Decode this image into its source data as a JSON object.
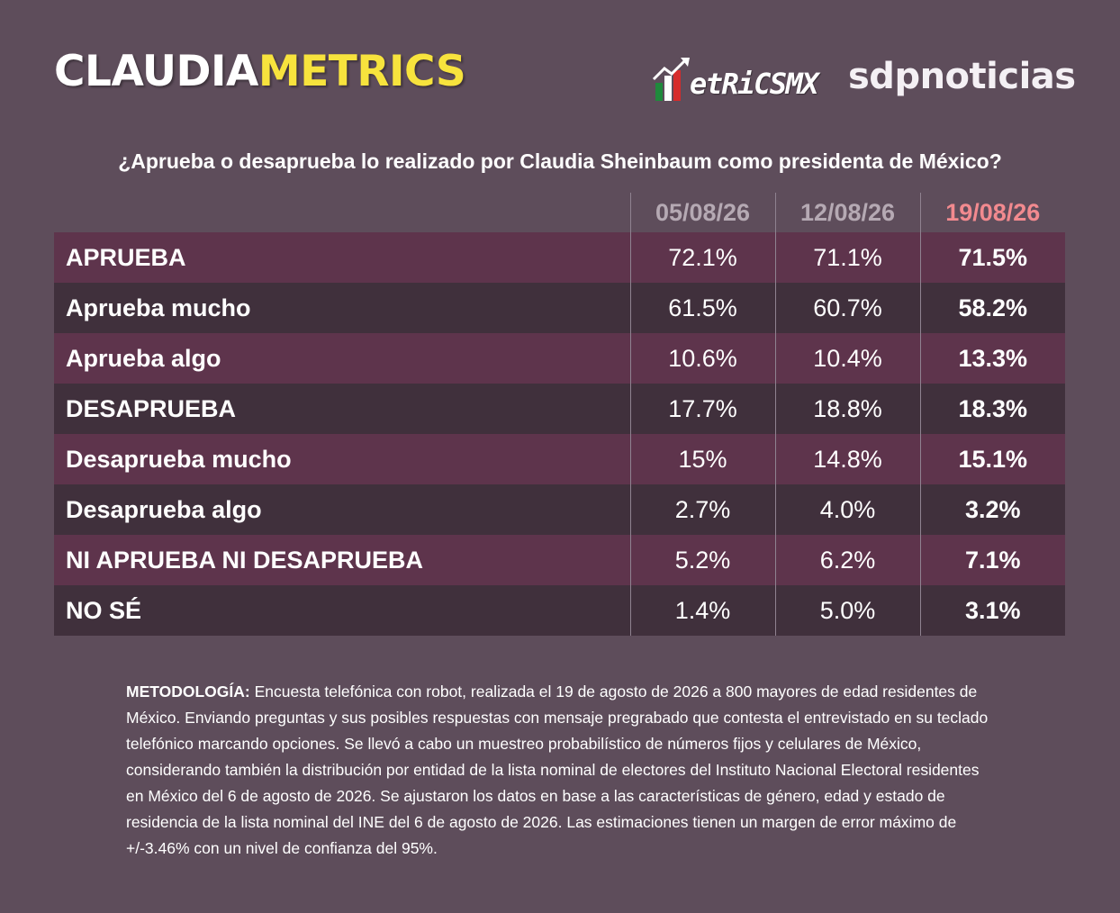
{
  "header": {
    "brand_left_white": "CLAUDIA",
    "brand_left_yellow": "METRICS",
    "brand_mid": "etRiCSMX",
    "brand_right": "sdpnoticias"
  },
  "chart_data": {
    "type": "table",
    "title": "¿Aprueba o desaprueba lo realizado por Claudia Sheinbaum como presidenta de México?",
    "columns": [
      "05/08/26",
      "12/08/26",
      "19/08/26"
    ],
    "rows": [
      {
        "label": "APRUEBA",
        "values": [
          "72.1%",
          "71.1%",
          "71.5%"
        ]
      },
      {
        "label": "Aprueba mucho",
        "values": [
          "61.5%",
          "60.7%",
          "58.2%"
        ]
      },
      {
        "label": "Aprueba algo",
        "values": [
          "10.6%",
          "10.4%",
          "13.3%"
        ]
      },
      {
        "label": "DESAPRUEBA",
        "values": [
          "17.7%",
          "18.8%",
          "18.3%"
        ]
      },
      {
        "label": "Desaprueba mucho",
        "values": [
          "15%",
          "14.8%",
          "15.1%"
        ]
      },
      {
        "label": "Desaprueba algo",
        "values": [
          "2.7%",
          "4.0%",
          "3.2%"
        ]
      },
      {
        "label": "NI APRUEBA NI DESAPRUEBA",
        "values": [
          "5.2%",
          "6.2%",
          "7.1%"
        ]
      },
      {
        "label": "NO SÉ",
        "values": [
          "1.4%",
          "5.0%",
          "3.1%"
        ]
      }
    ]
  },
  "methodology": {
    "label": "METODOLOGÍA:",
    "text": " Encuesta telefónica con robot, realizada el 19 de agosto de 2026 a 800 mayores de edad residentes de México. Enviando preguntas y sus posibles respuestas con mensaje pregrabado que contesta el entrevistado en su teclado telefónico marcando opciones. Se llevó a cabo un muestreo probabilístico de números fijos y celulares de México, considerando también la distribución por entidad de la lista nominal de electores del Instituto Nacional Electoral residentes en México del 6 de agosto de 2026. Se ajustaron los datos en base a las características de género, edad y estado de residencia de la lista nominal del INE del 6 de agosto de 2026. Las estimaciones tienen un margen de error máximo de +/-3.46% con un nivel de confianza del 95%."
  },
  "colors": {
    "background": "#5e4d5b",
    "row_odd": "#5e344c",
    "row_even": "#40303c",
    "brand_yellow": "#f7e33d",
    "latest_date": "#f28a8f",
    "old_date": "#b5a9b3"
  }
}
